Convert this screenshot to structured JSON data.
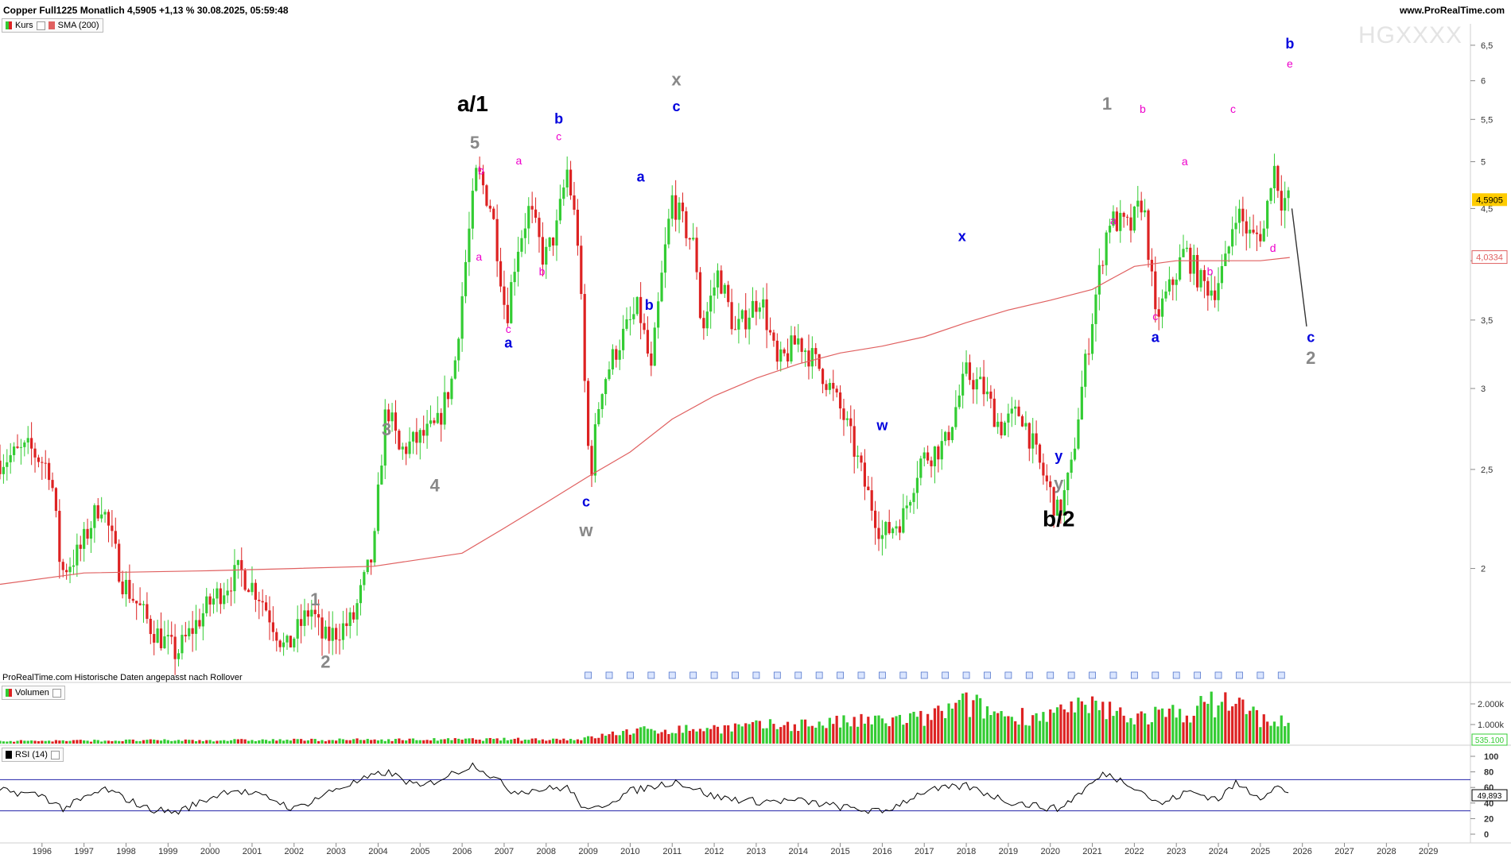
{
  "header": {
    "title": "Copper Full1225 Monatlich 4,5905 +1,13 % 30.08.2025, 05:59:48",
    "site": "www.ProRealTime.com",
    "watermark": "HGXXXX",
    "source_note": "ProRealTime.com Historische Daten angepasst nach Rollover"
  },
  "panels": {
    "price_legend": [
      "Kurs",
      "SMA (200)"
    ],
    "volume_legend": "Volumen",
    "rsi_legend": "RSI (14)"
  },
  "colors": {
    "up": "#33cc33",
    "down": "#dd2222",
    "sma": "#e06060",
    "rsi_line": "#000000",
    "rsi_band": "#2222aa",
    "label_gray": "#888888",
    "label_black": "#000000",
    "label_blue": "#0000dd",
    "label_magenta": "#ee00cc",
    "badge_last": "#ffcc00"
  },
  "chart_data": [
    {
      "type": "candlestick",
      "title": "Copper Full1225 Monatlich",
      "x_range": [
        1995.0,
        2030.0
      ],
      "y_scale": "log",
      "y_range": [
        1.55,
        6.7
      ],
      "y_ticks": [
        "2",
        "2,5",
        "3",
        "3,5",
        "4",
        "4,5",
        "5",
        "5,5",
        "6",
        "6,5"
      ],
      "last_price": "4,5905",
      "sma_value": "4,0334",
      "year_ticks": [
        "1996",
        "1997",
        "1998",
        "1999",
        "2000",
        "2001",
        "2002",
        "2003",
        "2004",
        "2005",
        "2006",
        "2007",
        "2008",
        "2009",
        "2010",
        "2011",
        "2012",
        "2013",
        "2014",
        "2015",
        "2016",
        "2017",
        "2018",
        "2019",
        "2020",
        "2021",
        "2022",
        "2023",
        "2024",
        "2025",
        "2026",
        "2027",
        "2028",
        "2029"
      ],
      "anchors": [
        {
          "t": 1995.0,
          "v": 2.55
        },
        {
          "t": 1995.7,
          "v": 2.62
        },
        {
          "t": 1996.2,
          "v": 2.5
        },
        {
          "t": 1996.45,
          "v": 1.98
        },
        {
          "t": 1996.9,
          "v": 2.08
        },
        {
          "t": 1997.4,
          "v": 2.33
        },
        {
          "t": 1997.9,
          "v": 1.95
        },
        {
          "t": 1998.6,
          "v": 1.75
        },
        {
          "t": 1999.2,
          "v": 1.65
        },
        {
          "t": 2000.0,
          "v": 1.85
        },
        {
          "t": 2000.7,
          "v": 1.99
        },
        {
          "t": 2001.2,
          "v": 1.88
        },
        {
          "t": 2001.8,
          "v": 1.66
        },
        {
          "t": 2002.4,
          "v": 1.83
        },
        {
          "t": 2002.7,
          "v": 1.7
        },
        {
          "t": 2003.4,
          "v": 1.78
        },
        {
          "t": 2003.9,
          "v": 2.08
        },
        {
          "t": 2004.2,
          "v": 2.9
        },
        {
          "t": 2004.5,
          "v": 2.6
        },
        {
          "t": 2005.4,
          "v": 2.75
        },
        {
          "t": 2005.8,
          "v": 3.1
        },
        {
          "t": 2006.0,
          "v": 3.7
        },
        {
          "t": 2006.35,
          "v": 4.9
        },
        {
          "t": 2006.7,
          "v": 4.5
        },
        {
          "t": 2007.05,
          "v": 3.5
        },
        {
          "t": 2007.3,
          "v": 4.1
        },
        {
          "t": 2007.6,
          "v": 4.5
        },
        {
          "t": 2007.95,
          "v": 4.0
        },
        {
          "t": 2008.25,
          "v": 4.3
        },
        {
          "t": 2008.5,
          "v": 4.9
        },
        {
          "t": 2008.75,
          "v": 4.2
        },
        {
          "t": 2008.95,
          "v": 2.8
        },
        {
          "t": 2009.05,
          "v": 2.45
        },
        {
          "t": 2009.3,
          "v": 3.0
        },
        {
          "t": 2009.7,
          "v": 3.3
        },
        {
          "t": 2010.2,
          "v": 3.6
        },
        {
          "t": 2010.5,
          "v": 3.1
        },
        {
          "t": 2011.0,
          "v": 4.6
        },
        {
          "t": 2011.2,
          "v": 4.4
        },
        {
          "t": 2011.55,
          "v": 4.1
        },
        {
          "t": 2011.7,
          "v": 3.4
        },
        {
          "t": 2012.1,
          "v": 3.9
        },
        {
          "t": 2012.5,
          "v": 3.4
        },
        {
          "t": 2013.1,
          "v": 3.7
        },
        {
          "t": 2013.5,
          "v": 3.15
        },
        {
          "t": 2014.0,
          "v": 3.35
        },
        {
          "t": 2014.6,
          "v": 3.1
        },
        {
          "t": 2015.1,
          "v": 2.8
        },
        {
          "t": 2015.6,
          "v": 2.4
        },
        {
          "t": 2016.0,
          "v": 2.15
        },
        {
          "t": 2016.5,
          "v": 2.25
        },
        {
          "t": 2016.9,
          "v": 2.55
        },
        {
          "t": 2017.5,
          "v": 2.65
        },
        {
          "t": 2018.0,
          "v": 3.1
        },
        {
          "t": 2018.4,
          "v": 3.0
        },
        {
          "t": 2018.8,
          "v": 2.75
        },
        {
          "t": 2019.3,
          "v": 2.85
        },
        {
          "t": 2019.7,
          "v": 2.55
        },
        {
          "t": 2020.2,
          "v": 2.25
        },
        {
          "t": 2020.5,
          "v": 2.5
        },
        {
          "t": 2020.9,
          "v": 3.3
        },
        {
          "t": 2021.4,
          "v": 4.4
        },
        {
          "t": 2021.9,
          "v": 4.3
        },
        {
          "t": 2022.2,
          "v": 4.6
        },
        {
          "t": 2022.5,
          "v": 3.5
        },
        {
          "t": 2022.9,
          "v": 3.8
        },
        {
          "t": 2023.2,
          "v": 4.1
        },
        {
          "t": 2023.6,
          "v": 3.8
        },
        {
          "t": 2023.9,
          "v": 3.75
        },
        {
          "t": 2024.2,
          "v": 4.0
        },
        {
          "t": 2024.4,
          "v": 4.5
        },
        {
          "t": 2024.8,
          "v": 4.2
        },
        {
          "t": 2025.1,
          "v": 4.3
        },
        {
          "t": 2025.3,
          "v": 5.0
        },
        {
          "t": 2025.5,
          "v": 4.6
        },
        {
          "t": 2025.67,
          "v": 4.59
        }
      ],
      "sma_points": [
        {
          "t": 1995.0,
          "v": 1.93
        },
        {
          "t": 1997.0,
          "v": 1.98
        },
        {
          "t": 2000.0,
          "v": 1.99
        },
        {
          "t": 2002.0,
          "v": 2.0
        },
        {
          "t": 2003.9,
          "v": 2.01
        },
        {
          "t": 2006.0,
          "v": 2.07
        },
        {
          "t": 2007.0,
          "v": 2.19
        },
        {
          "t": 2008.0,
          "v": 2.32
        },
        {
          "t": 2009.0,
          "v": 2.46
        },
        {
          "t": 2010.0,
          "v": 2.6
        },
        {
          "t": 2011.0,
          "v": 2.8
        },
        {
          "t": 2012.0,
          "v": 2.95
        },
        {
          "t": 2013.0,
          "v": 3.07
        },
        {
          "t": 2014.0,
          "v": 3.17
        },
        {
          "t": 2015.0,
          "v": 3.25
        },
        {
          "t": 2016.0,
          "v": 3.3
        },
        {
          "t": 2017.0,
          "v": 3.37
        },
        {
          "t": 2018.0,
          "v": 3.48
        },
        {
          "t": 2019.0,
          "v": 3.58
        },
        {
          "t": 2020.0,
          "v": 3.66
        },
        {
          "t": 2021.0,
          "v": 3.75
        },
        {
          "t": 2021.5,
          "v": 3.85
        },
        {
          "t": 2022.0,
          "v": 3.95
        },
        {
          "t": 2023.0,
          "v": 4.0
        },
        {
          "t": 2024.0,
          "v": 4.0
        },
        {
          "t": 2025.0,
          "v": 4.0
        },
        {
          "t": 2025.7,
          "v": 4.03
        }
      ],
      "projection": {
        "from": {
          "t": 2025.75,
          "v": 4.5
        },
        "to": {
          "t": 2026.1,
          "v": 3.45
        }
      },
      "wave_labels": [
        {
          "text": "a/1",
          "t": 2006.25,
          "v": 5.6,
          "style": "black-big"
        },
        {
          "text": "5",
          "t": 2006.3,
          "v": 5.15,
          "style": "gray"
        },
        {
          "text": "b",
          "t": 2006.45,
          "v": 4.86,
          "style": "mag"
        },
        {
          "text": "a",
          "t": 2006.4,
          "v": 4.0,
          "style": "mag"
        },
        {
          "text": "a",
          "t": 2007.35,
          "v": 4.97,
          "style": "mag"
        },
        {
          "text": "c",
          "t": 2007.1,
          "v": 3.4,
          "style": "mag"
        },
        {
          "text": "a",
          "t": 2007.1,
          "v": 3.29,
          "style": "blue"
        },
        {
          "text": "b",
          "t": 2008.3,
          "v": 5.45,
          "style": "blue"
        },
        {
          "text": "c",
          "t": 2008.3,
          "v": 5.25,
          "style": "mag"
        },
        {
          "text": "b",
          "t": 2007.9,
          "v": 3.87,
          "style": "mag"
        },
        {
          "text": "c",
          "t": 2008.95,
          "v": 2.3,
          "style": "blue"
        },
        {
          "text": "w",
          "t": 2008.95,
          "v": 2.15,
          "style": "gray"
        },
        {
          "text": "a",
          "t": 2010.25,
          "v": 4.78,
          "style": "blue"
        },
        {
          "text": "b",
          "t": 2010.45,
          "v": 3.58,
          "style": "blue"
        },
        {
          "text": "x",
          "t": 2011.1,
          "v": 5.94,
          "style": "gray"
        },
        {
          "text": "c",
          "t": 2011.1,
          "v": 5.6,
          "style": "blue"
        },
        {
          "text": "w",
          "t": 2016.0,
          "v": 2.73,
          "style": "blue"
        },
        {
          "text": "x",
          "t": 2017.9,
          "v": 4.18,
          "style": "blue"
        },
        {
          "text": "y",
          "t": 2020.2,
          "v": 2.55,
          "style": "blue"
        },
        {
          "text": "y",
          "t": 2020.2,
          "v": 2.39,
          "style": "gray"
        },
        {
          "text": "b/2",
          "t": 2020.2,
          "v": 2.2,
          "style": "black-big"
        },
        {
          "text": "1",
          "t": 2021.35,
          "v": 5.62,
          "style": "gray"
        },
        {
          "text": "b",
          "t": 2022.2,
          "v": 5.58,
          "style": "mag"
        },
        {
          "text": "a",
          "t": 2021.5,
          "v": 4.34,
          "style": "mag"
        },
        {
          "text": "a",
          "t": 2023.2,
          "v": 4.96,
          "style": "mag"
        },
        {
          "text": "c",
          "t": 2022.5,
          "v": 3.5,
          "style": "mag"
        },
        {
          "text": "a",
          "t": 2022.5,
          "v": 3.33,
          "style": "blue"
        },
        {
          "text": "b",
          "t": 2023.8,
          "v": 3.87,
          "style": "mag"
        },
        {
          "text": "c",
          "t": 2024.35,
          "v": 5.58,
          "style": "mag"
        },
        {
          "text": "d",
          "t": 2025.3,
          "v": 4.08,
          "style": "mag"
        },
        {
          "text": "b",
          "t": 2025.7,
          "v": 6.45,
          "style": "blue"
        },
        {
          "text": "e",
          "t": 2025.7,
          "v": 6.18,
          "style": "mag"
        },
        {
          "text": "c",
          "t": 2026.2,
          "v": 3.33,
          "style": "blue"
        },
        {
          "text": "2",
          "t": 2026.2,
          "v": 3.17,
          "style": "gray"
        },
        {
          "text": "1",
          "t": 2002.5,
          "v": 1.84,
          "style": "gray"
        },
        {
          "text": "2",
          "t": 2002.75,
          "v": 1.6,
          "style": "gray"
        },
        {
          "text": "3",
          "t": 2004.2,
          "v": 2.7,
          "style": "gray"
        },
        {
          "text": "4",
          "t": 2005.35,
          "v": 2.38,
          "style": "gray"
        }
      ]
    },
    {
      "type": "bar",
      "title": "Volumen",
      "y_ticks": [
        "2.000k",
        "1.000k"
      ],
      "last_value": "535.100",
      "profile": [
        {
          "t": 1995.0,
          "v": 0.12
        },
        {
          "t": 2008.8,
          "v": 0.2
        },
        {
          "t": 2009.0,
          "v": 0.25
        },
        {
          "t": 2010.0,
          "v": 0.55
        },
        {
          "t": 2012.0,
          "v": 0.68
        },
        {
          "t": 2014.0,
          "v": 0.85
        },
        {
          "t": 2016.0,
          "v": 1.0
        },
        {
          "t": 2017.0,
          "v": 1.1
        },
        {
          "t": 2018.0,
          "v": 1.75
        },
        {
          "t": 2019.0,
          "v": 1.2
        },
        {
          "t": 2020.0,
          "v": 1.3
        },
        {
          "t": 2021.0,
          "v": 1.6
        },
        {
          "t": 2022.0,
          "v": 1.2
        },
        {
          "t": 2023.0,
          "v": 1.3
        },
        {
          "t": 2024.3,
          "v": 1.95
        },
        {
          "t": 2025.0,
          "v": 1.1
        },
        {
          "t": 2025.7,
          "v": 0.9
        }
      ]
    },
    {
      "type": "line",
      "title": "RSI (14)",
      "y_range": [
        0,
        100
      ],
      "y_ticks": [
        "100",
        "80",
        "60",
        "40",
        "20",
        "0"
      ],
      "bands": [
        70,
        30
      ],
      "last_value": "49,893",
      "points": [
        {
          "t": 1995.0,
          "v": 56
        },
        {
          "t": 1996.0,
          "v": 50
        },
        {
          "t": 1996.5,
          "v": 33
        },
        {
          "t": 1997.5,
          "v": 58
        },
        {
          "t": 1998.5,
          "v": 33
        },
        {
          "t": 1999.2,
          "v": 28
        },
        {
          "t": 2000.5,
          "v": 58
        },
        {
          "t": 2001.5,
          "v": 45
        },
        {
          "t": 2002.0,
          "v": 32
        },
        {
          "t": 2003.0,
          "v": 58
        },
        {
          "t": 2004.2,
          "v": 80
        },
        {
          "t": 2005.0,
          "v": 60
        },
        {
          "t": 2006.3,
          "v": 90
        },
        {
          "t": 2007.2,
          "v": 55
        },
        {
          "t": 2008.5,
          "v": 60
        },
        {
          "t": 2009.0,
          "v": 28
        },
        {
          "t": 2010.0,
          "v": 55
        },
        {
          "t": 2011.1,
          "v": 68
        },
        {
          "t": 2012.0,
          "v": 48
        },
        {
          "t": 2013.0,
          "v": 42
        },
        {
          "t": 2014.0,
          "v": 43
        },
        {
          "t": 2015.0,
          "v": 35
        },
        {
          "t": 2016.0,
          "v": 28
        },
        {
          "t": 2017.0,
          "v": 55
        },
        {
          "t": 2018.0,
          "v": 62
        },
        {
          "t": 2019.0,
          "v": 42
        },
        {
          "t": 2020.2,
          "v": 32
        },
        {
          "t": 2021.3,
          "v": 78
        },
        {
          "t": 2022.0,
          "v": 62
        },
        {
          "t": 2022.6,
          "v": 38
        },
        {
          "t": 2023.3,
          "v": 55
        },
        {
          "t": 2024.0,
          "v": 45
        },
        {
          "t": 2024.4,
          "v": 65
        },
        {
          "t": 2025.0,
          "v": 48
        },
        {
          "t": 2025.4,
          "v": 62
        },
        {
          "t": 2025.67,
          "v": 50
        }
      ]
    }
  ]
}
